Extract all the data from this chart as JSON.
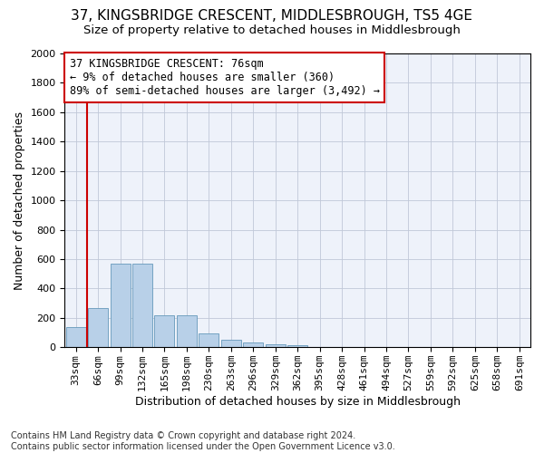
{
  "title": "37, KINGSBRIDGE CRESCENT, MIDDLESBROUGH, TS5 4GE",
  "subtitle": "Size of property relative to detached houses in Middlesbrough",
  "xlabel": "Distribution of detached houses by size in Middlesbrough",
  "ylabel": "Number of detached properties",
  "categories": [
    "33sqm",
    "66sqm",
    "99sqm",
    "132sqm",
    "165sqm",
    "198sqm",
    "230sqm",
    "263sqm",
    "296sqm",
    "329sqm",
    "362sqm",
    "395sqm",
    "428sqm",
    "461sqm",
    "494sqm",
    "527sqm",
    "559sqm",
    "592sqm",
    "625sqm",
    "658sqm",
    "691sqm"
  ],
  "values": [
    140,
    270,
    570,
    570,
    220,
    220,
    95,
    50,
    30,
    20,
    15,
    0,
    0,
    0,
    0,
    0,
    0,
    0,
    0,
    0,
    0
  ],
  "bar_color": "#b8d0e8",
  "bar_edge_color": "#6699bb",
  "vline_color": "#cc0000",
  "annotation_text": "37 KINGSBRIDGE CRESCENT: 76sqm\n← 9% of detached houses are smaller (360)\n89% of semi-detached houses are larger (3,492) →",
  "annotation_box_color": "#ffffff",
  "annotation_box_edge_color": "#cc0000",
  "ylim": [
    0,
    2000
  ],
  "yticks": [
    0,
    200,
    400,
    600,
    800,
    1000,
    1200,
    1400,
    1600,
    1800,
    2000
  ],
  "footer_line1": "Contains HM Land Registry data © Crown copyright and database right 2024.",
  "footer_line2": "Contains public sector information licensed under the Open Government Licence v3.0.",
  "bg_color": "#eef2fa",
  "fig_bg_color": "#ffffff",
  "title_fontsize": 11,
  "subtitle_fontsize": 9.5,
  "axis_label_fontsize": 9,
  "tick_fontsize": 8,
  "annotation_fontsize": 8.5
}
